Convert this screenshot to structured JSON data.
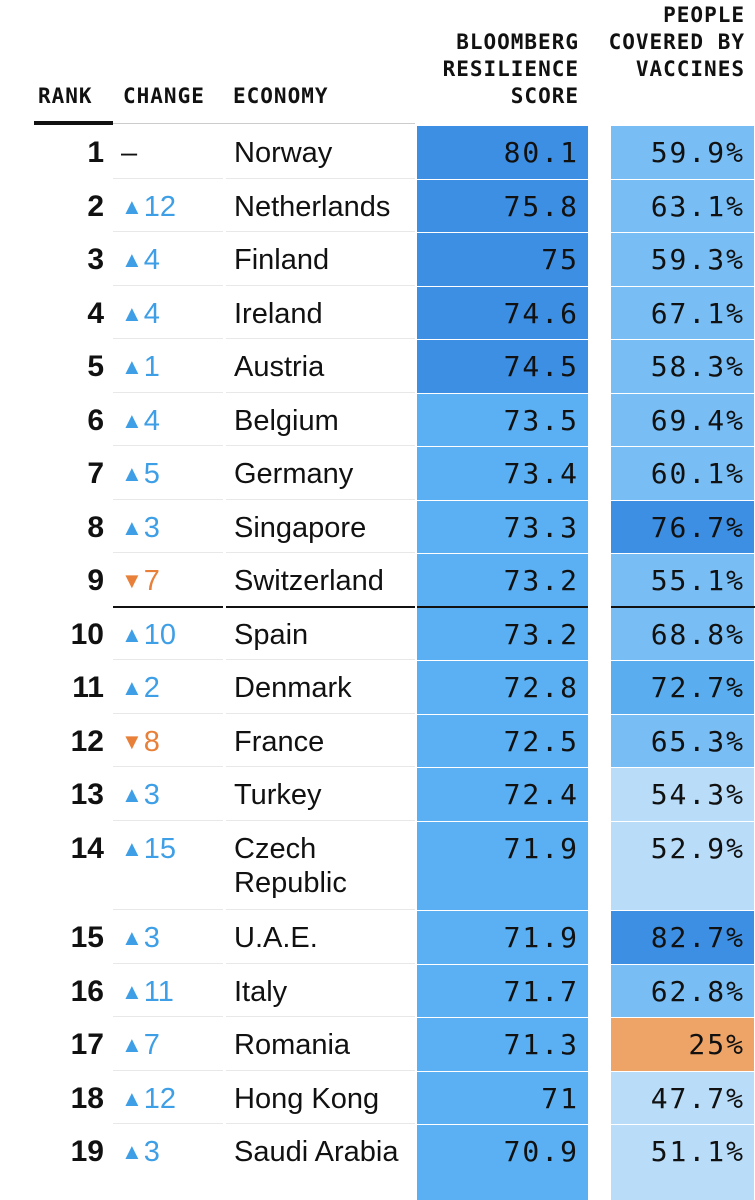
{
  "header": {
    "rank": "RANK",
    "change": "CHANGE",
    "economy": "ECONOMY",
    "score": "BLOOMBERG RESILIENCE SCORE",
    "vaccines": "PEOPLE COVERED BY VACCINES"
  },
  "colors": {
    "score_dark": "#3d8fe3",
    "score_mid": "#5ab0f2",
    "vacc_darkest": "#3d8fe3",
    "vacc_dark": "#5aaeef",
    "vacc_mid": "#78bdf3",
    "vacc_light": "#b9dcf8",
    "vacc_low": "#eea466",
    "change_up": "#3e9fe6",
    "change_down": "#e8803a"
  },
  "rows": [
    {
      "rank": "1",
      "direction": "same",
      "arrow": "",
      "change": "–",
      "economy": "Norway",
      "score": "80.1",
      "vaccines": "59.9%"
    },
    {
      "rank": "2",
      "direction": "up",
      "arrow": "▲",
      "change": "12",
      "economy": "Netherlands",
      "score": "75.8",
      "vaccines": "63.1%"
    },
    {
      "rank": "3",
      "direction": "up",
      "arrow": "▲",
      "change": "4",
      "economy": "Finland",
      "score": "75",
      "vaccines": "59.3%"
    },
    {
      "rank": "4",
      "direction": "up",
      "arrow": "▲",
      "change": "4",
      "economy": "Ireland",
      "score": "74.6",
      "vaccines": "67.1%"
    },
    {
      "rank": "5",
      "direction": "up",
      "arrow": "▲",
      "change": "1",
      "economy": "Austria",
      "score": "74.5",
      "vaccines": "58.3%"
    },
    {
      "rank": "6",
      "direction": "up",
      "arrow": "▲",
      "change": "4",
      "economy": "Belgium",
      "score": "73.5",
      "vaccines": "69.4%"
    },
    {
      "rank": "7",
      "direction": "up",
      "arrow": "▲",
      "change": "5",
      "economy": "Germany",
      "score": "73.4",
      "vaccines": "60.1%"
    },
    {
      "rank": "8",
      "direction": "up",
      "arrow": "▲",
      "change": "3",
      "economy": "Singapore",
      "score": "73.3",
      "vaccines": "76.7%"
    },
    {
      "rank": "9",
      "direction": "down",
      "arrow": "▼",
      "change": "7",
      "economy": "Switzerland",
      "score": "73.2",
      "vaccines": "55.1%"
    },
    {
      "rank": "10",
      "direction": "up",
      "arrow": "▲",
      "change": "10",
      "economy": "Spain",
      "score": "73.2",
      "vaccines": "68.8%"
    },
    {
      "rank": "11",
      "direction": "up",
      "arrow": "▲",
      "change": "2",
      "economy": "Denmark",
      "score": "72.8",
      "vaccines": "72.7%"
    },
    {
      "rank": "12",
      "direction": "down",
      "arrow": "▼",
      "change": "8",
      "economy": "France",
      "score": "72.5",
      "vaccines": "65.3%"
    },
    {
      "rank": "13",
      "direction": "up",
      "arrow": "▲",
      "change": "3",
      "economy": "Turkey",
      "score": "72.4",
      "vaccines": "54.3%"
    },
    {
      "rank": "14",
      "direction": "up",
      "arrow": "▲",
      "change": "15",
      "economy": "Czech Republic",
      "score": "71.9",
      "vaccines": "52.9%"
    },
    {
      "rank": "15",
      "direction": "up",
      "arrow": "▲",
      "change": "3",
      "economy": "U.A.E.",
      "score": "71.9",
      "vaccines": "82.7%"
    },
    {
      "rank": "16",
      "direction": "up",
      "arrow": "▲",
      "change": "11",
      "economy": "Italy",
      "score": "71.7",
      "vaccines": "62.8%"
    },
    {
      "rank": "17",
      "direction": "up",
      "arrow": "▲",
      "change": "7",
      "economy": "Romania",
      "score": "71.3",
      "vaccines": "25%"
    },
    {
      "rank": "18",
      "direction": "up",
      "arrow": "▲",
      "change": "12",
      "economy": "Hong Kong",
      "score": "71",
      "vaccines": "47.7%"
    },
    {
      "rank": "19",
      "direction": "up",
      "arrow": "▲",
      "change": "3",
      "economy": "Saudi Arabia",
      "score": "70.9",
      "vaccines": "51.1%"
    }
  ]
}
